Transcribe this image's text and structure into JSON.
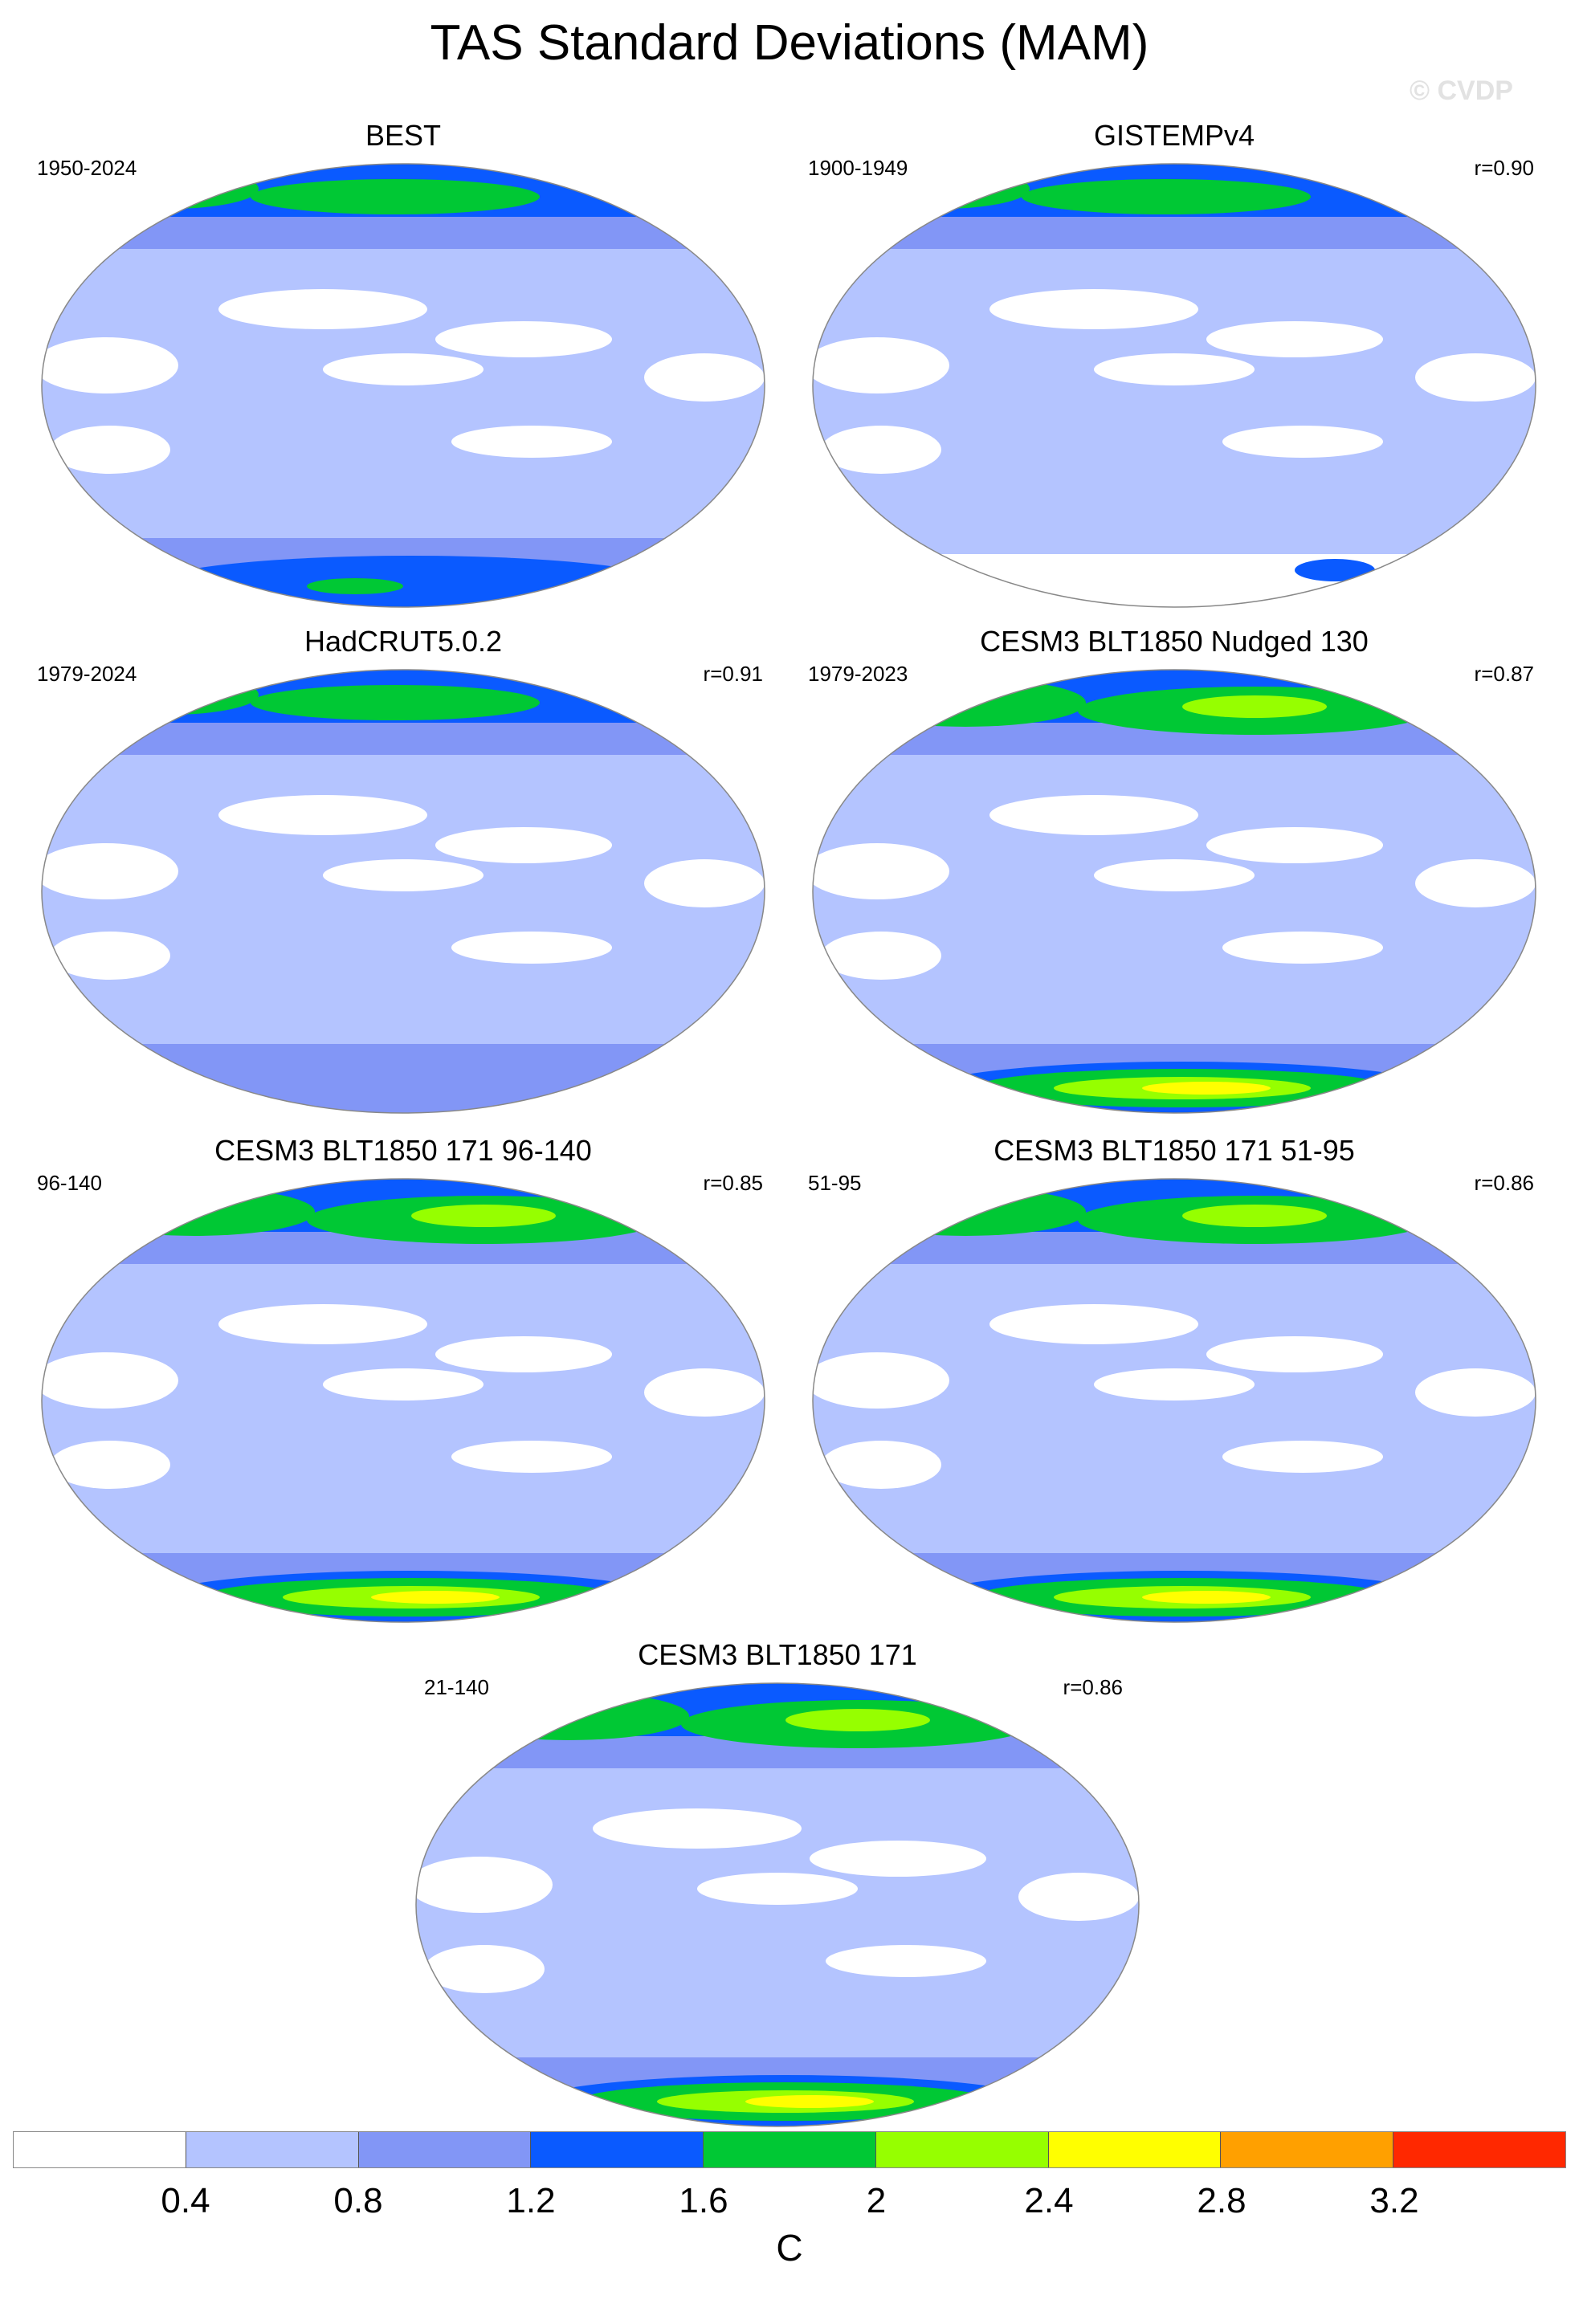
{
  "title": "TAS Standard Deviations (MAM)",
  "credit": "© CVDP",
  "panels": [
    {
      "name": "BEST",
      "period": "1950-2024",
      "r": "",
      "pattern": "obs"
    },
    {
      "name": "GISTEMPv4",
      "period": "1900-1949",
      "r": "r=0.90",
      "pattern": "gis"
    },
    {
      "name": "HadCRUT5.0.2",
      "period": "1979-2024",
      "r": "r=0.91",
      "pattern": "had"
    },
    {
      "name": "CESM3 BLT1850 Nudged 130",
      "period": "1979-2023",
      "r": "r=0.87",
      "pattern": "model"
    },
    {
      "name": "CESM3 BLT1850 171 96-140",
      "period": "96-140",
      "r": "r=0.85",
      "pattern": "model"
    },
    {
      "name": "CESM3 BLT1850 171 51-95",
      "period": "51-95",
      "r": "r=0.86",
      "pattern": "model"
    },
    {
      "name": "CESM3 BLT1850 171",
      "period": "21-140",
      "r": "r=0.86",
      "pattern": "model"
    }
  ],
  "colorbar": {
    "colors": [
      "#ffffff",
      "#b4c4ff",
      "#8296f6",
      "#0a5aff",
      "#00c834",
      "#96ff00",
      "#ffff00",
      "#ffa000",
      "#ff2800"
    ],
    "ticks": [
      "0.4",
      "0.8",
      "1.2",
      "1.6",
      "2",
      "2.4",
      "2.8",
      "3.2"
    ],
    "units": "C"
  }
}
